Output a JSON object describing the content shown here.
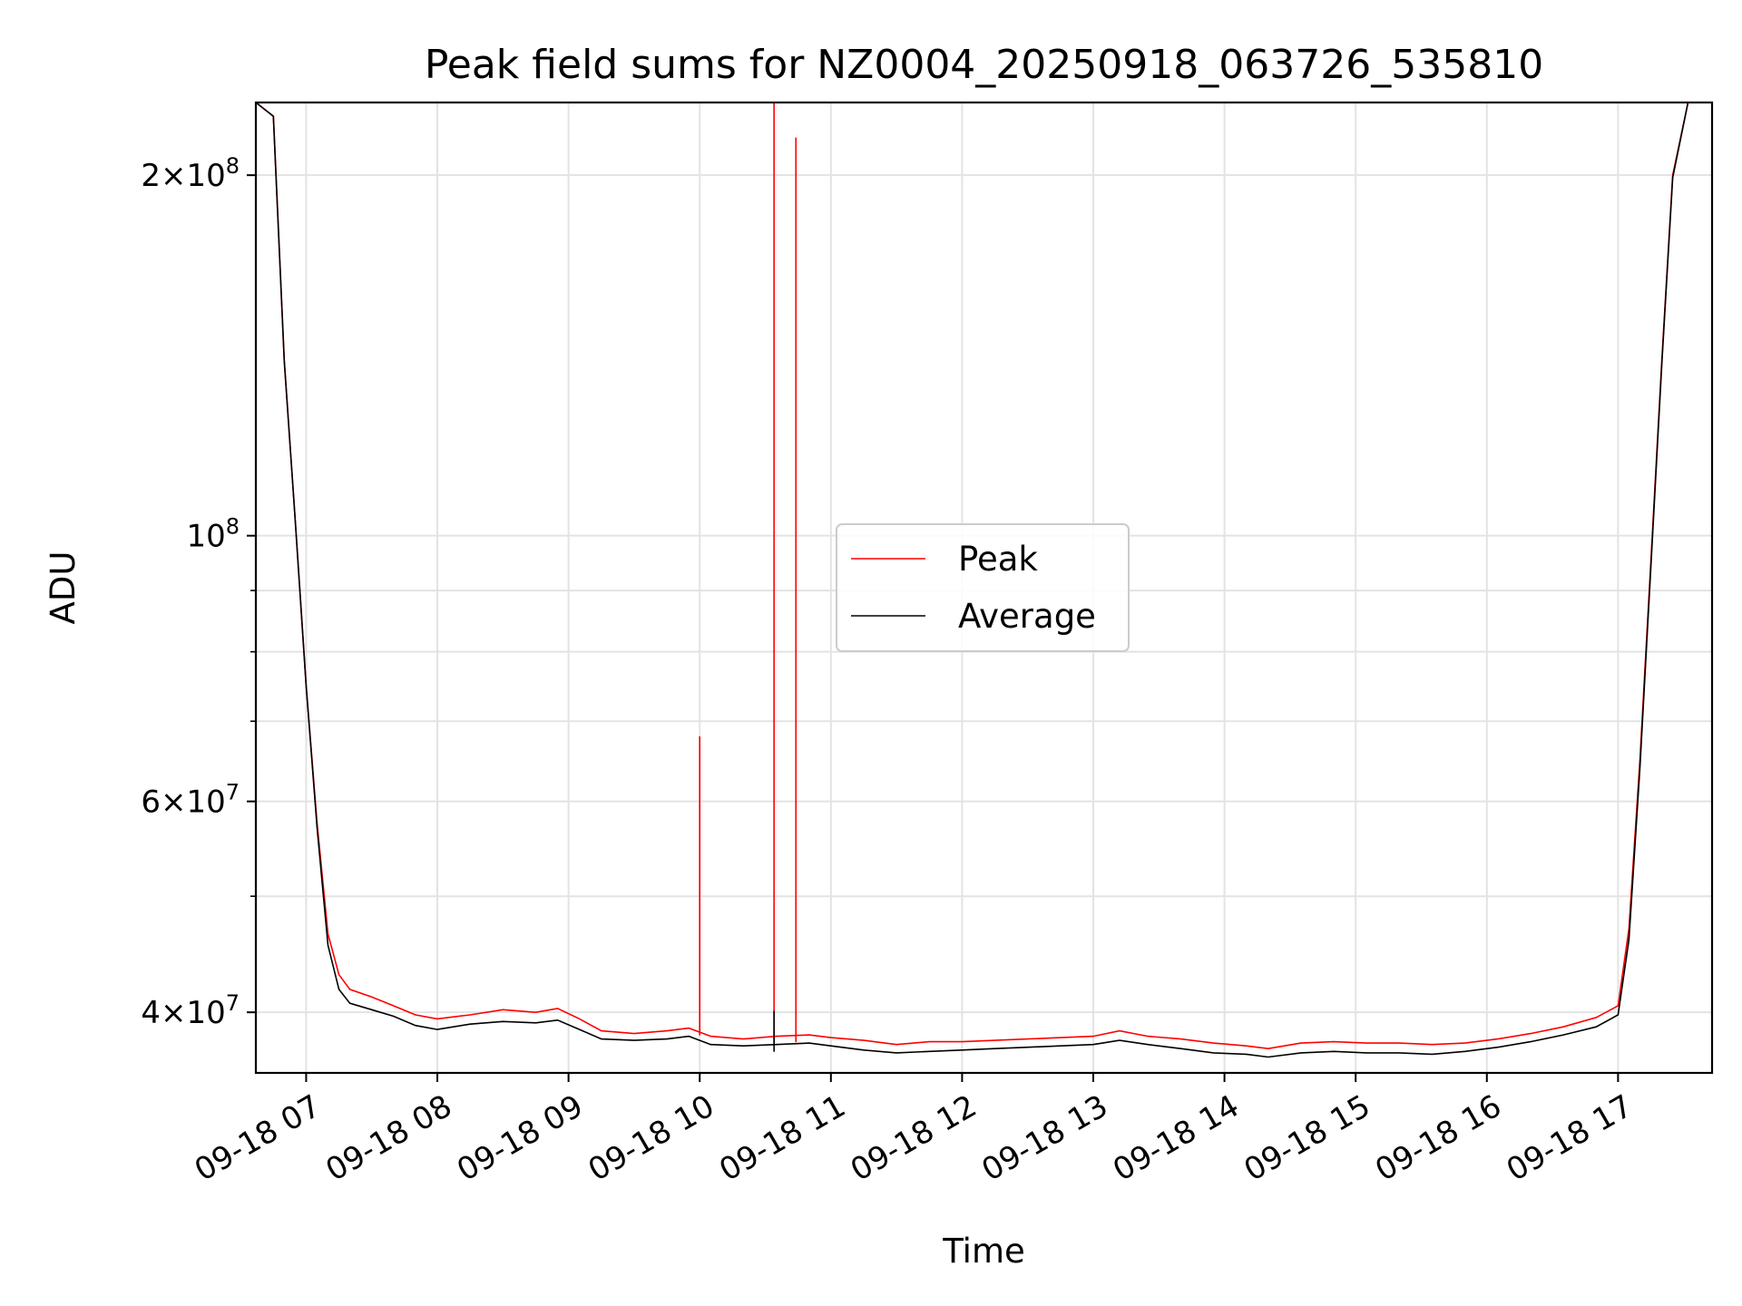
{
  "chart_data": {
    "type": "line",
    "title": "Peak field sums for NZ0004_20250918_063726_535810",
    "xlabel": "Time",
    "ylabel": "ADU",
    "yscale": "log",
    "ylim": [
      35600000,
      230000000
    ],
    "xlim": [
      "2025-09-18 06:37",
      "2025-09-18 17:43"
    ],
    "grid": true,
    "legend_position": "center",
    "x_tick_labels": [
      "09-18 07",
      "09-18 08",
      "09-18 09",
      "09-18 10",
      "09-18 11",
      "09-18 12",
      "09-18 13",
      "09-18 14",
      "09-18 15",
      "09-18 16",
      "09-18 17"
    ],
    "y_ticks": [
      {
        "value": 40000000,
        "mantissa": "4",
        "exponent": "7"
      },
      {
        "value": 60000000,
        "mantissa": "6",
        "exponent": "7"
      },
      {
        "value": 100000000,
        "mantissa": "",
        "exponent": "8"
      },
      {
        "value": 200000000,
        "mantissa": "2",
        "exponent": "8"
      }
    ],
    "y_minor_ticks": [
      50000000,
      70000000,
      80000000,
      90000000
    ],
    "series": [
      {
        "name": "Peak",
        "color": "#ff0000",
        "points": [
          [
            "2025-09-18 06:37",
            230000000
          ],
          [
            "2025-09-18 06:45",
            224000000
          ],
          [
            "2025-09-18 06:50",
            140000000
          ],
          [
            "2025-09-18 06:55",
            103000000
          ],
          [
            "2025-09-18 07:00",
            75000000
          ],
          [
            "2025-09-18 07:05",
            57500000
          ],
          [
            "2025-09-18 07:10",
            46500000
          ],
          [
            "2025-09-18 07:15",
            43000000
          ],
          [
            "2025-09-18 07:20",
            41800000
          ],
          [
            "2025-09-18 07:30",
            41200000
          ],
          [
            "2025-09-18 07:40",
            40500000
          ],
          [
            "2025-09-18 07:50",
            39800000
          ],
          [
            "2025-09-18 08:00",
            39500000
          ],
          [
            "2025-09-18 08:15",
            39800000
          ],
          [
            "2025-09-18 08:30",
            40200000
          ],
          [
            "2025-09-18 08:45",
            40000000
          ],
          [
            "2025-09-18 08:55",
            40300000
          ],
          [
            "2025-09-18 09:05",
            39500000
          ],
          [
            "2025-09-18 09:15",
            38600000
          ],
          [
            "2025-09-18 09:30",
            38400000
          ],
          [
            "2025-09-18 09:45",
            38600000
          ],
          [
            "2025-09-18 09:55",
            38800000
          ],
          [
            "2025-09-18 10:05",
            38200000
          ],
          [
            "2025-09-18 10:20",
            38000000
          ],
          [
            "2025-09-18 10:35",
            38200000
          ],
          [
            "2025-09-18 10:50",
            38300000
          ],
          [
            "2025-09-18 11:00",
            38100000
          ],
          [
            "2025-09-18 11:15",
            37900000
          ],
          [
            "2025-09-18 11:30",
            37600000
          ],
          [
            "2025-09-18 11:45",
            37800000
          ],
          [
            "2025-09-18 12:00",
            37800000
          ],
          [
            "2025-09-18 12:15",
            37900000
          ],
          [
            "2025-09-18 12:30",
            38000000
          ],
          [
            "2025-09-18 12:45",
            38100000
          ],
          [
            "2025-09-18 13:00",
            38200000
          ],
          [
            "2025-09-18 13:12",
            38600000
          ],
          [
            "2025-09-18 13:25",
            38200000
          ],
          [
            "2025-09-18 13:40",
            38000000
          ],
          [
            "2025-09-18 13:55",
            37700000
          ],
          [
            "2025-09-18 14:10",
            37500000
          ],
          [
            "2025-09-18 14:20",
            37300000
          ],
          [
            "2025-09-18 14:35",
            37700000
          ],
          [
            "2025-09-18 14:50",
            37800000
          ],
          [
            "2025-09-18 15:05",
            37700000
          ],
          [
            "2025-09-18 15:20",
            37700000
          ],
          [
            "2025-09-18 15:35",
            37600000
          ],
          [
            "2025-09-18 15:50",
            37700000
          ],
          [
            "2025-09-18 16:05",
            38000000
          ],
          [
            "2025-09-18 16:20",
            38400000
          ],
          [
            "2025-09-18 16:35",
            38900000
          ],
          [
            "2025-09-18 16:50",
            39600000
          ],
          [
            "2025-09-18 17:00",
            40500000
          ],
          [
            "2025-09-18 17:05",
            47000000
          ],
          [
            "2025-09-18 17:10",
            65000000
          ],
          [
            "2025-09-18 17:15",
            95000000
          ],
          [
            "2025-09-18 17:20",
            140000000
          ],
          [
            "2025-09-18 17:25",
            200000000
          ],
          [
            "2025-09-18 17:32",
            230000000
          ],
          [
            "2025-09-18 17:43",
            230000000
          ]
        ],
        "spikes": [
          {
            "x": "2025-09-18 10:00",
            "y": 68000000
          },
          {
            "x": "2025-09-18 10:34",
            "y": 230000000
          },
          {
            "x": "2025-09-18 10:44",
            "y": 215000000
          }
        ]
      },
      {
        "name": "Average",
        "color": "#000000",
        "points": [
          [
            "2025-09-18 06:37",
            230000000
          ],
          [
            "2025-09-18 06:45",
            224000000
          ],
          [
            "2025-09-18 06:50",
            140000000
          ],
          [
            "2025-09-18 06:55",
            103000000
          ],
          [
            "2025-09-18 07:00",
            75000000
          ],
          [
            "2025-09-18 07:05",
            57000000
          ],
          [
            "2025-09-18 07:10",
            45500000
          ],
          [
            "2025-09-18 07:15",
            41800000
          ],
          [
            "2025-09-18 07:20",
            40700000
          ],
          [
            "2025-09-18 07:30",
            40200000
          ],
          [
            "2025-09-18 07:40",
            39700000
          ],
          [
            "2025-09-18 07:50",
            39000000
          ],
          [
            "2025-09-18 08:00",
            38700000
          ],
          [
            "2025-09-18 08:15",
            39100000
          ],
          [
            "2025-09-18 08:30",
            39300000
          ],
          [
            "2025-09-18 08:45",
            39200000
          ],
          [
            "2025-09-18 08:55",
            39400000
          ],
          [
            "2025-09-18 09:05",
            38700000
          ],
          [
            "2025-09-18 09:15",
            38000000
          ],
          [
            "2025-09-18 09:30",
            37900000
          ],
          [
            "2025-09-18 09:45",
            38000000
          ],
          [
            "2025-09-18 09:55",
            38200000
          ],
          [
            "2025-09-18 10:05",
            37600000
          ],
          [
            "2025-09-18 10:20",
            37500000
          ],
          [
            "2025-09-18 10:35",
            37600000
          ],
          [
            "2025-09-18 10:50",
            37700000
          ],
          [
            "2025-09-18 11:00",
            37500000
          ],
          [
            "2025-09-18 11:15",
            37200000
          ],
          [
            "2025-09-18 11:30",
            37000000
          ],
          [
            "2025-09-18 11:45",
            37100000
          ],
          [
            "2025-09-18 12:00",
            37200000
          ],
          [
            "2025-09-18 12:15",
            37300000
          ],
          [
            "2025-09-18 12:30",
            37400000
          ],
          [
            "2025-09-18 12:45",
            37500000
          ],
          [
            "2025-09-18 13:00",
            37600000
          ],
          [
            "2025-09-18 13:12",
            37900000
          ],
          [
            "2025-09-18 13:25",
            37600000
          ],
          [
            "2025-09-18 13:40",
            37300000
          ],
          [
            "2025-09-18 13:55",
            37000000
          ],
          [
            "2025-09-18 14:10",
            36900000
          ],
          [
            "2025-09-18 14:20",
            36700000
          ],
          [
            "2025-09-18 14:35",
            37000000
          ],
          [
            "2025-09-18 14:50",
            37100000
          ],
          [
            "2025-09-18 15:05",
            37000000
          ],
          [
            "2025-09-18 15:20",
            37000000
          ],
          [
            "2025-09-18 15:35",
            36900000
          ],
          [
            "2025-09-18 15:50",
            37100000
          ],
          [
            "2025-09-18 16:05",
            37400000
          ],
          [
            "2025-09-18 16:20",
            37800000
          ],
          [
            "2025-09-18 16:35",
            38300000
          ],
          [
            "2025-09-18 16:50",
            38900000
          ],
          [
            "2025-09-18 17:00",
            39800000
          ],
          [
            "2025-09-18 17:05",
            46000000
          ],
          [
            "2025-09-18 17:10",
            64000000
          ],
          [
            "2025-09-18 17:15",
            94000000
          ],
          [
            "2025-09-18 17:20",
            139000000
          ],
          [
            "2025-09-18 17:25",
            199000000
          ],
          [
            "2025-09-18 17:32",
            230000000
          ],
          [
            "2025-09-18 17:43",
            230000000
          ]
        ],
        "spikes": [
          {
            "x": "2025-09-18 10:34",
            "y": 40100000
          }
        ]
      }
    ]
  }
}
